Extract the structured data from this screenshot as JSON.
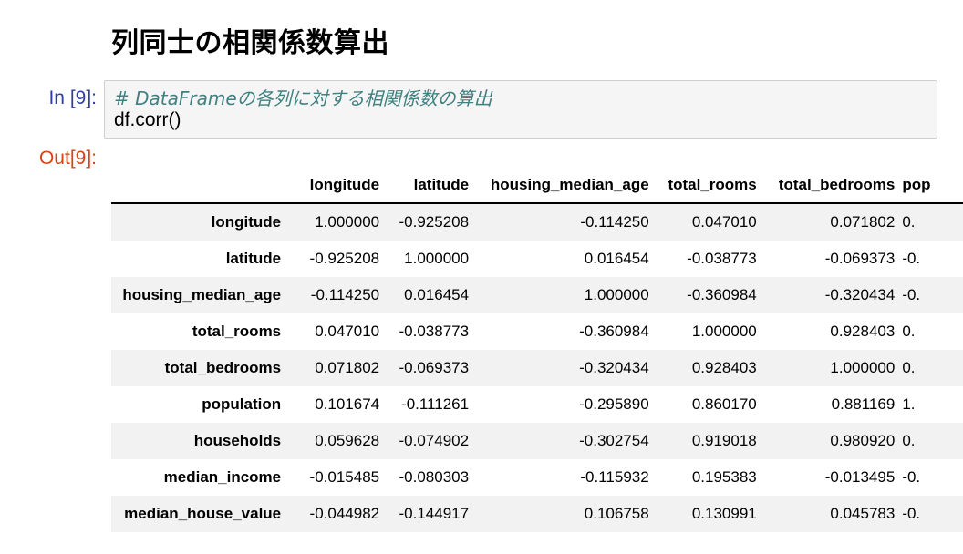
{
  "heading": "列同士の相関係数算出",
  "input_prompt": "In [9]:",
  "output_prompt": "Out[9]:",
  "code": {
    "comment": "# DataFrameの各列に対する相関係数の算出",
    "line2": "df.corr()"
  },
  "table": {
    "columns": [
      "longitude",
      "latitude",
      "housing_median_age",
      "total_rooms",
      "total_bedrooms",
      "pop"
    ],
    "rows": [
      {
        "label": "longitude",
        "values": [
          "1.000000",
          "-0.925208",
          "-0.114250",
          "0.047010",
          "0.071802",
          "0."
        ]
      },
      {
        "label": "latitude",
        "values": [
          "-0.925208",
          "1.000000",
          "0.016454",
          "-0.038773",
          "-0.069373",
          "-0."
        ]
      },
      {
        "label": "housing_median_age",
        "values": [
          "-0.114250",
          "0.016454",
          "1.000000",
          "-0.360984",
          "-0.320434",
          "-0."
        ]
      },
      {
        "label": "total_rooms",
        "values": [
          "0.047010",
          "-0.038773",
          "-0.360984",
          "1.000000",
          "0.928403",
          "0."
        ]
      },
      {
        "label": "total_bedrooms",
        "values": [
          "0.071802",
          "-0.069373",
          "-0.320434",
          "0.928403",
          "1.000000",
          "0."
        ]
      },
      {
        "label": "population",
        "values": [
          "0.101674",
          "-0.111261",
          "-0.295890",
          "0.860170",
          "0.881169",
          "1."
        ]
      },
      {
        "label": "households",
        "values": [
          "0.059628",
          "-0.074902",
          "-0.302754",
          "0.919018",
          "0.980920",
          "0."
        ]
      },
      {
        "label": "median_income",
        "values": [
          "-0.015485",
          "-0.080303",
          "-0.115932",
          "0.195383",
          "-0.013495",
          "-0."
        ]
      },
      {
        "label": "median_house_value",
        "values": [
          "-0.044982",
          "-0.144917",
          "0.106758",
          "0.130991",
          "0.045783",
          "-0."
        ]
      }
    ]
  }
}
